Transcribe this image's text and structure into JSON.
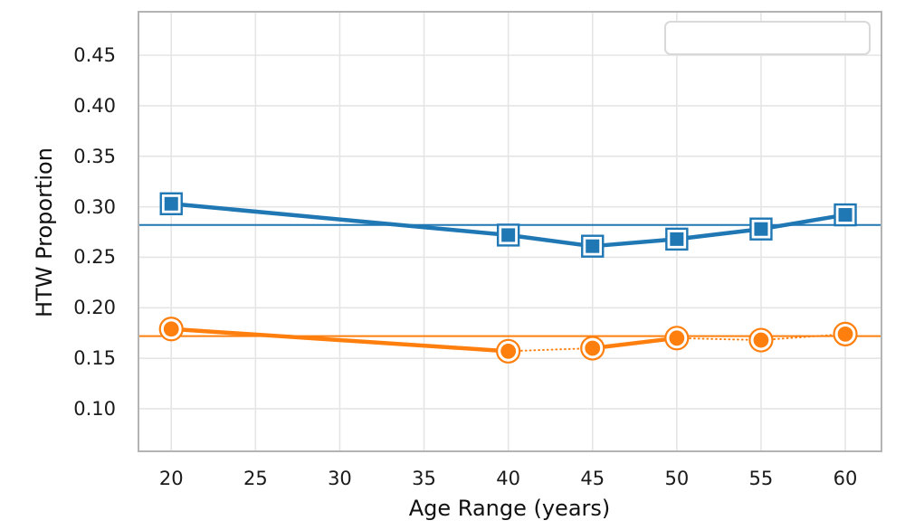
{
  "chart_data": {
    "type": "line",
    "title": "",
    "xlabel": "Age Range (years)",
    "ylabel": "HTW Proportion",
    "xlim": [
      18.0,
      62.2
    ],
    "ylim": [
      0.057,
      0.494
    ],
    "grid": true,
    "xticks": [
      20,
      25,
      30,
      35,
      40,
      45,
      50,
      55,
      60
    ],
    "xtick_labels": [
      "20",
      "25",
      "30",
      "35",
      "40",
      "45",
      "50",
      "55",
      "60"
    ],
    "yticks": [
      0.1,
      0.15,
      0.2,
      0.25,
      0.3,
      0.35,
      0.4,
      0.45
    ],
    "ytick_labels": [
      "0.10",
      "0.15",
      "0.20",
      "0.25",
      "0.30",
      "0.35",
      "0.40",
      "0.45"
    ],
    "legend": {
      "position": "upper right",
      "visible": true,
      "entries": []
    },
    "colors": {
      "blue_series": "#1f77b4",
      "orange_series": "#ff7f0e",
      "gridline": "#e5e5e5",
      "spine": "#b4b4b4",
      "tick_text": "#1b1b1b"
    },
    "series": [
      {
        "name": "htw-proportion-blue-squares",
        "color": "#1f77b4",
        "marker": "square",
        "x": [
          20,
          40,
          45,
          50,
          55,
          60
        ],
        "y": [
          0.303,
          0.272,
          0.261,
          0.268,
          0.278,
          0.292
        ],
        "segment_styles": [
          "solid",
          "solid",
          "solid",
          "solid",
          "solid"
        ],
        "reference_line": 0.282
      },
      {
        "name": "htw-proportion-orange-circles",
        "color": "#ff7f0e",
        "marker": "circle",
        "x": [
          20,
          40,
          45,
          50,
          55,
          60
        ],
        "y": [
          0.179,
          0.157,
          0.16,
          0.17,
          0.168,
          0.174
        ],
        "segment_styles": [
          "solid",
          "dotted",
          "solid",
          "dotted",
          "dotted"
        ],
        "reference_line": 0.172
      }
    ]
  }
}
